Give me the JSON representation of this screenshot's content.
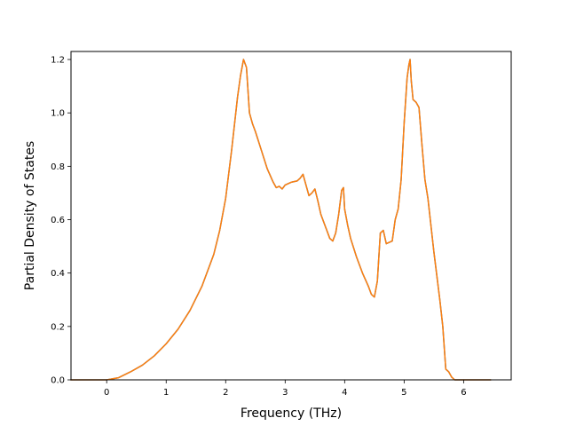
{
  "chart_data": {
    "type": "line",
    "title": "",
    "xlabel": "Frequency (THz)",
    "ylabel": "Partial Density of States",
    "xlim": [
      -0.6,
      6.8
    ],
    "ylim": [
      0.0,
      1.23
    ],
    "grid": false,
    "legend": "none",
    "xticks": [
      0,
      1,
      2,
      3,
      4,
      5,
      6
    ],
    "yticks": [
      0.0,
      0.2,
      0.4,
      0.6,
      0.8,
      1.0,
      1.2
    ],
    "xtick_labels": [
      "0",
      "1",
      "2",
      "3",
      "4",
      "5",
      "6"
    ],
    "ytick_labels": [
      "0.0",
      "0.2",
      "0.4",
      "0.6",
      "0.8",
      "1.0",
      "1.2"
    ],
    "series": [
      {
        "color": "#1f77b4",
        "x": [
          -0.6,
          0.0,
          0.2,
          0.4,
          0.6,
          0.8,
          1.0,
          1.2,
          1.4,
          1.6,
          1.8,
          1.9,
          2.0,
          2.1,
          2.2,
          2.25,
          2.3,
          2.35,
          2.4,
          2.45,
          2.5,
          2.6,
          2.7,
          2.8,
          2.85,
          2.9,
          2.95,
          3.0,
          3.1,
          3.2,
          3.25,
          3.3,
          3.35,
          3.4,
          3.45,
          3.5,
          3.55,
          3.6,
          3.7,
          3.75,
          3.8,
          3.85,
          3.9,
          3.95,
          3.98,
          4.0,
          4.05,
          4.1,
          4.2,
          4.3,
          4.4,
          4.45,
          4.5,
          4.55,
          4.6,
          4.65,
          4.7,
          4.8,
          4.85,
          4.9,
          4.95,
          5.0,
          5.05,
          5.08,
          5.1,
          5.12,
          5.15,
          5.2,
          5.25,
          5.3,
          5.35,
          5.4,
          5.5,
          5.6,
          5.65,
          5.7,
          5.75,
          5.8,
          5.85,
          6.0,
          6.45
        ],
        "y": [
          0.0,
          0.0,
          0.008,
          0.03,
          0.055,
          0.09,
          0.135,
          0.19,
          0.26,
          0.35,
          0.47,
          0.56,
          0.68,
          0.86,
          1.06,
          1.14,
          1.2,
          1.17,
          1.0,
          0.96,
          0.93,
          0.86,
          0.79,
          0.74,
          0.72,
          0.725,
          0.715,
          0.73,
          0.74,
          0.745,
          0.755,
          0.77,
          0.73,
          0.69,
          0.7,
          0.715,
          0.67,
          0.62,
          0.56,
          0.53,
          0.52,
          0.55,
          0.62,
          0.71,
          0.72,
          0.64,
          0.58,
          0.53,
          0.46,
          0.4,
          0.35,
          0.32,
          0.31,
          0.37,
          0.55,
          0.56,
          0.51,
          0.52,
          0.6,
          0.64,
          0.75,
          0.96,
          1.13,
          1.18,
          1.2,
          1.12,
          1.05,
          1.04,
          1.02,
          0.88,
          0.75,
          0.68,
          0.48,
          0.3,
          0.2,
          0.04,
          0.03,
          0.01,
          0.0,
          0.0,
          0.0
        ]
      },
      {
        "color": "#ff7f0e",
        "x": [
          -0.6,
          0.0,
          0.2,
          0.4,
          0.6,
          0.8,
          1.0,
          1.2,
          1.4,
          1.6,
          1.8,
          1.9,
          2.0,
          2.1,
          2.2,
          2.25,
          2.3,
          2.35,
          2.4,
          2.45,
          2.5,
          2.6,
          2.7,
          2.8,
          2.85,
          2.9,
          2.95,
          3.0,
          3.1,
          3.2,
          3.25,
          3.3,
          3.35,
          3.4,
          3.45,
          3.5,
          3.55,
          3.6,
          3.7,
          3.75,
          3.8,
          3.85,
          3.9,
          3.95,
          3.98,
          4.0,
          4.05,
          4.1,
          4.2,
          4.3,
          4.4,
          4.45,
          4.5,
          4.55,
          4.6,
          4.65,
          4.7,
          4.8,
          4.85,
          4.9,
          4.95,
          5.0,
          5.05,
          5.08,
          5.1,
          5.12,
          5.15,
          5.2,
          5.25,
          5.3,
          5.35,
          5.4,
          5.5,
          5.6,
          5.65,
          5.7,
          5.75,
          5.8,
          5.85,
          6.0,
          6.45
        ],
        "y": [
          0.0,
          0.0,
          0.008,
          0.03,
          0.055,
          0.09,
          0.135,
          0.19,
          0.26,
          0.35,
          0.47,
          0.56,
          0.68,
          0.86,
          1.06,
          1.14,
          1.2,
          1.17,
          1.0,
          0.96,
          0.93,
          0.86,
          0.79,
          0.74,
          0.72,
          0.725,
          0.715,
          0.73,
          0.74,
          0.745,
          0.755,
          0.77,
          0.73,
          0.69,
          0.7,
          0.715,
          0.67,
          0.62,
          0.56,
          0.53,
          0.52,
          0.55,
          0.62,
          0.71,
          0.72,
          0.64,
          0.58,
          0.53,
          0.46,
          0.4,
          0.35,
          0.32,
          0.31,
          0.37,
          0.55,
          0.56,
          0.51,
          0.52,
          0.6,
          0.64,
          0.75,
          0.96,
          1.13,
          1.18,
          1.2,
          1.12,
          1.05,
          1.04,
          1.02,
          0.88,
          0.75,
          0.68,
          0.48,
          0.3,
          0.2,
          0.04,
          0.03,
          0.01,
          0.0,
          0.0,
          0.0
        ]
      }
    ]
  }
}
